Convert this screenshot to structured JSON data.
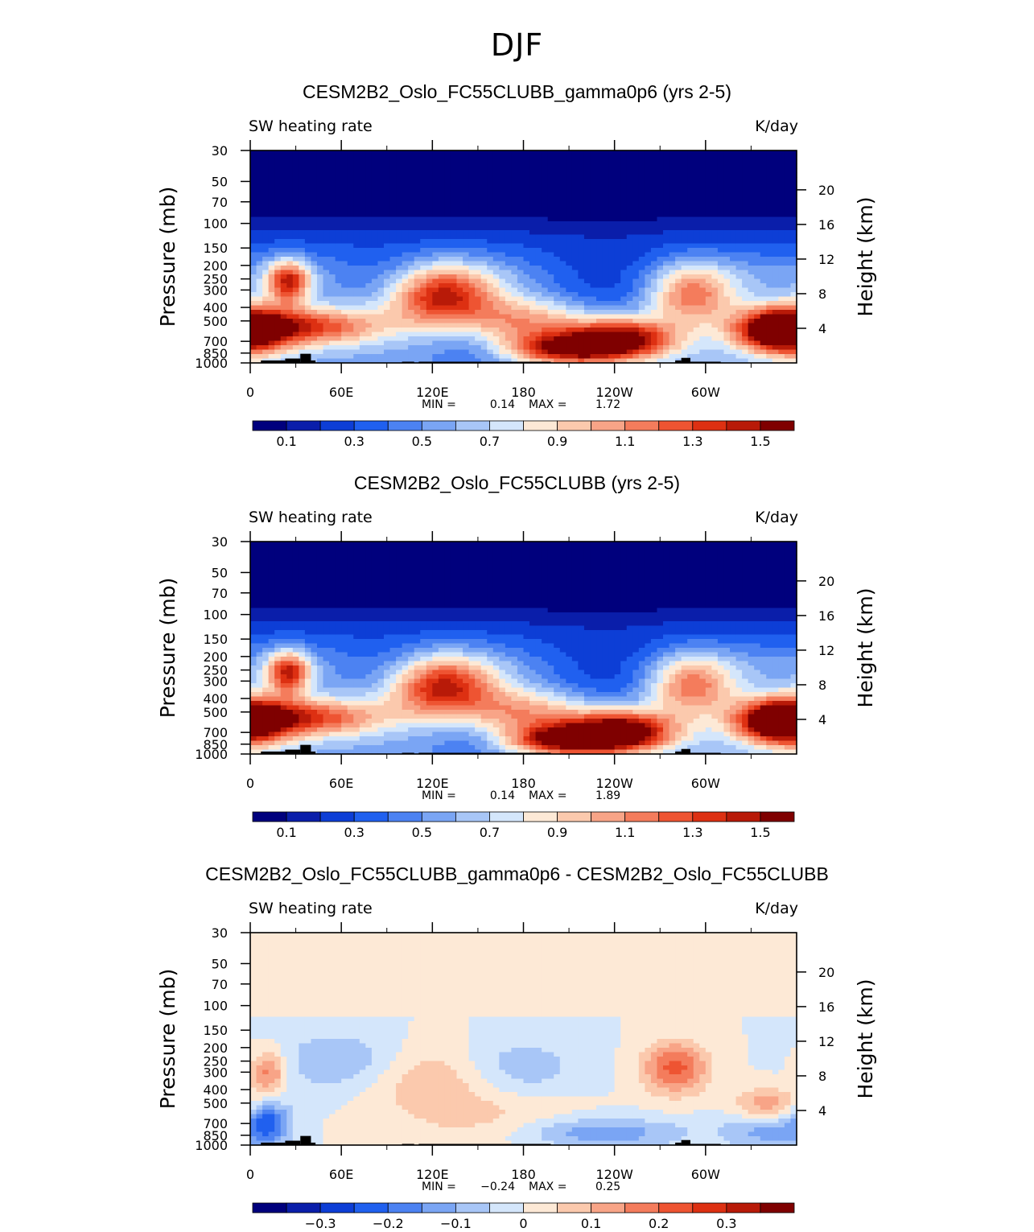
{
  "page_title": "DJF",
  "chart_data": [
    {
      "type": "contour",
      "title": "CESM2B2_Oslo_FC55CLUBB_gamma0p6 (yrs 2-5)",
      "left_label": "SW heating rate",
      "right_label": "K/day",
      "xlabel": "",
      "ylabel": "Pressure (mb)",
      "y2label": "Height (km)",
      "x_ticks": [
        "0",
        "60E",
        "120E",
        "180",
        "120W",
        "60W"
      ],
      "y_ticks": [
        "30",
        "50",
        "70",
        "100",
        "150",
        "200",
        "250",
        "300",
        "400",
        "500",
        "700",
        "850",
        "1000"
      ],
      "y2_ticks": [
        "20",
        "16",
        "12",
        "8",
        "4"
      ],
      "min_label": "MIN =",
      "min_value": "0.14",
      "max_label": "MAX =",
      "max_value": "1.72",
      "colorbar_ticks": [
        "0.1",
        "0.3",
        "0.5",
        "0.7",
        "0.9",
        "1.1",
        "1.3",
        "1.5"
      ],
      "colorbar_colors": [
        "#00007d",
        "#0a1eaa",
        "#0d3ed6",
        "#2060ef",
        "#4c82f2",
        "#7aa5f4",
        "#a8c6f7",
        "#d4e6fb",
        "#fde9d6",
        "#fbc9ad",
        "#f8a487",
        "#f47c5c",
        "#ee5432",
        "#dd3012",
        "#b81a08",
        "#7f0000"
      ]
    },
    {
      "type": "contour",
      "title": "CESM2B2_Oslo_FC55CLUBB (yrs 2-5)",
      "left_label": "SW heating rate",
      "right_label": "K/day",
      "xlabel": "",
      "ylabel": "Pressure (mb)",
      "y2label": "Height (km)",
      "x_ticks": [
        "0",
        "60E",
        "120E",
        "180",
        "120W",
        "60W"
      ],
      "y_ticks": [
        "30",
        "50",
        "70",
        "100",
        "150",
        "200",
        "250",
        "300",
        "400",
        "500",
        "700",
        "850",
        "1000"
      ],
      "y2_ticks": [
        "20",
        "16",
        "12",
        "8",
        "4"
      ],
      "min_label": "MIN =",
      "min_value": "0.14",
      "max_label": "MAX =",
      "max_value": "1.89",
      "colorbar_ticks": [
        "0.1",
        "0.3",
        "0.5",
        "0.7",
        "0.9",
        "1.1",
        "1.3",
        "1.5"
      ],
      "colorbar_colors": [
        "#00007d",
        "#0a1eaa",
        "#0d3ed6",
        "#2060ef",
        "#4c82f2",
        "#7aa5f4",
        "#a8c6f7",
        "#d4e6fb",
        "#fde9d6",
        "#fbc9ad",
        "#f8a487",
        "#f47c5c",
        "#ee5432",
        "#dd3012",
        "#b81a08",
        "#7f0000"
      ]
    },
    {
      "type": "contour",
      "title": "CESM2B2_Oslo_FC55CLUBB_gamma0p6 - CESM2B2_Oslo_FC55CLUBB",
      "left_label": "SW heating rate",
      "right_label": "K/day",
      "xlabel": "",
      "ylabel": "Pressure (mb)",
      "y2label": "Height (km)",
      "x_ticks": [
        "0",
        "60E",
        "120E",
        "180",
        "120W",
        "60W"
      ],
      "y_ticks": [
        "30",
        "50",
        "70",
        "100",
        "150",
        "200",
        "250",
        "300",
        "400",
        "500",
        "700",
        "850",
        "1000"
      ],
      "y2_ticks": [
        "20",
        "16",
        "12",
        "8",
        "4"
      ],
      "min_label": "MIN =",
      "min_value": "−0.24",
      "max_label": "MAX =",
      "max_value": "0.25",
      "colorbar_ticks": [
        "−0.3",
        "−0.2",
        "−0.1",
        "0",
        "0.1",
        "0.2",
        "0.3"
      ],
      "colorbar_colors": [
        "#00007d",
        "#0a1eaa",
        "#0d3ed6",
        "#2060ef",
        "#4c82f2",
        "#7aa5f4",
        "#a8c6f7",
        "#d4e6fb",
        "#fde9d6",
        "#fbc9ad",
        "#f8a487",
        "#f47c5c",
        "#ee5432",
        "#dd3012",
        "#b81a08",
        "#7f0000"
      ]
    }
  ]
}
